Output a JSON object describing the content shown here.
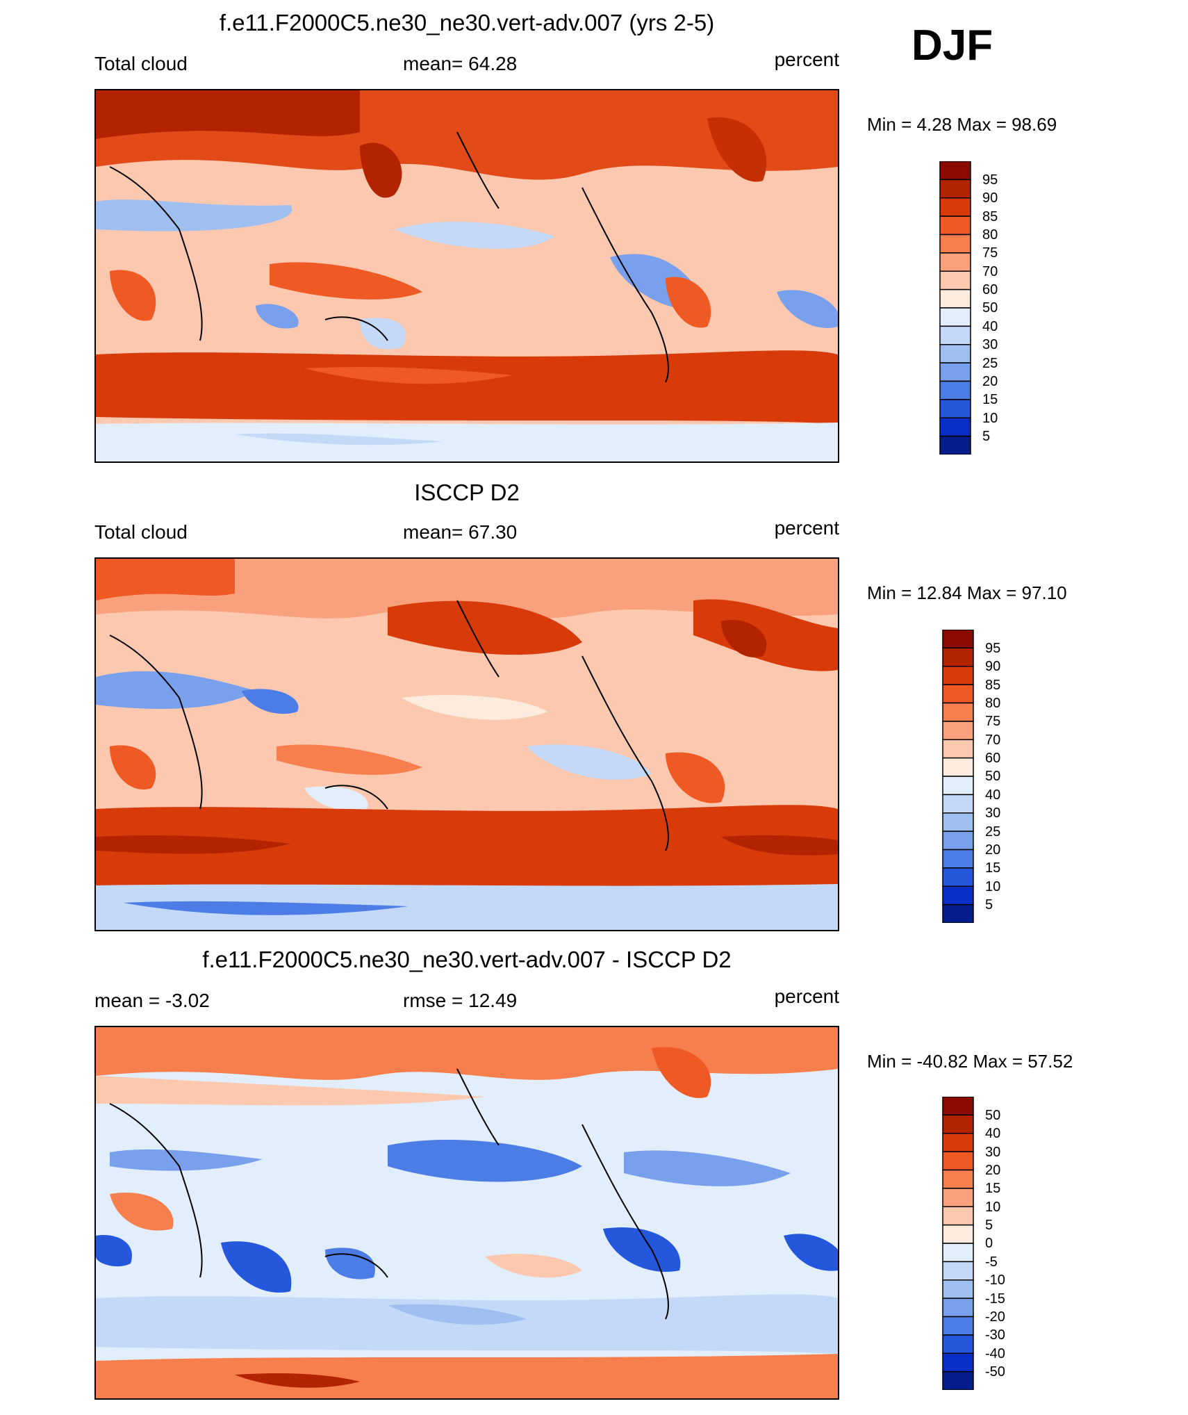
{
  "season": "DJF",
  "panels": [
    {
      "title": "f.e11.F2000C5.ne30_ne30.vert-adv.007 (yrs 2-5)",
      "left_label": "Total cloud",
      "center_label": "mean=  64.28",
      "right_label": "percent",
      "minmax": "Min =   4.28 Max =  98.69",
      "colorbar_labels": [
        "95",
        "90",
        "85",
        "80",
        "75",
        "70",
        "60",
        "50",
        "40",
        "30",
        "25",
        "20",
        "15",
        "10",
        "5"
      ]
    },
    {
      "title": "ISCCP D2",
      "left_label": "Total cloud",
      "center_label": "mean=  67.30",
      "right_label": "percent",
      "minmax": "Min =  12.84 Max =  97.10",
      "colorbar_labels": [
        "95",
        "90",
        "85",
        "80",
        "75",
        "70",
        "60",
        "50",
        "40",
        "30",
        "25",
        "20",
        "15",
        "10",
        "5"
      ]
    },
    {
      "title": "f.e11.F2000C5.ne30_ne30.vert-adv.007 - ISCCP D2",
      "left_label": "mean =  -3.02",
      "center_label": "rmse =  12.49",
      "right_label": "percent",
      "minmax": "Min = -40.82 Max =  57.52",
      "colorbar_labels": [
        "50",
        "40",
        "30",
        "20",
        "15",
        "10",
        "5",
        "0",
        "-5",
        "-10",
        "-15",
        "-20",
        "-30",
        "-40",
        "-50"
      ]
    }
  ],
  "colorbar_colors": [
    "#8b0a00",
    "#b32300",
    "#d83a0a",
    "#ef5a24",
    "#f67f4d",
    "#f9a17d",
    "#fcc9b0",
    "#fdebdd",
    "#e2eefb",
    "#c3d9f7",
    "#9fbff1",
    "#78a0ec",
    "#4c7de6",
    "#2557dd",
    "#0a2fc8",
    "#051d8a"
  ],
  "chart_data": [
    {
      "type": "heatmap",
      "title": "f.e11.F2000C5.ne30_ne30.vert-adv.007 (yrs 2-5)",
      "variable": "Total cloud",
      "units": "percent",
      "mean": 64.28,
      "min": 4.28,
      "max": 98.69,
      "contour_levels": [
        5,
        10,
        15,
        20,
        25,
        30,
        40,
        50,
        60,
        70,
        75,
        80,
        85,
        90,
        95
      ]
    },
    {
      "type": "heatmap",
      "title": "ISCCP D2",
      "variable": "Total cloud",
      "units": "percent",
      "mean": 67.3,
      "min": 12.84,
      "max": 97.1,
      "contour_levels": [
        5,
        10,
        15,
        20,
        25,
        30,
        40,
        50,
        60,
        70,
        75,
        80,
        85,
        90,
        95
      ]
    },
    {
      "type": "heatmap",
      "title": "f.e11.F2000C5.ne30_ne30.vert-adv.007 - ISCCP D2",
      "units": "percent",
      "mean": -3.02,
      "rmse": 12.49,
      "min": -40.82,
      "max": 57.52,
      "contour_levels": [
        -50,
        -40,
        -30,
        -20,
        -15,
        -10,
        -5,
        0,
        5,
        10,
        15,
        20,
        30,
        40,
        50
      ]
    }
  ]
}
